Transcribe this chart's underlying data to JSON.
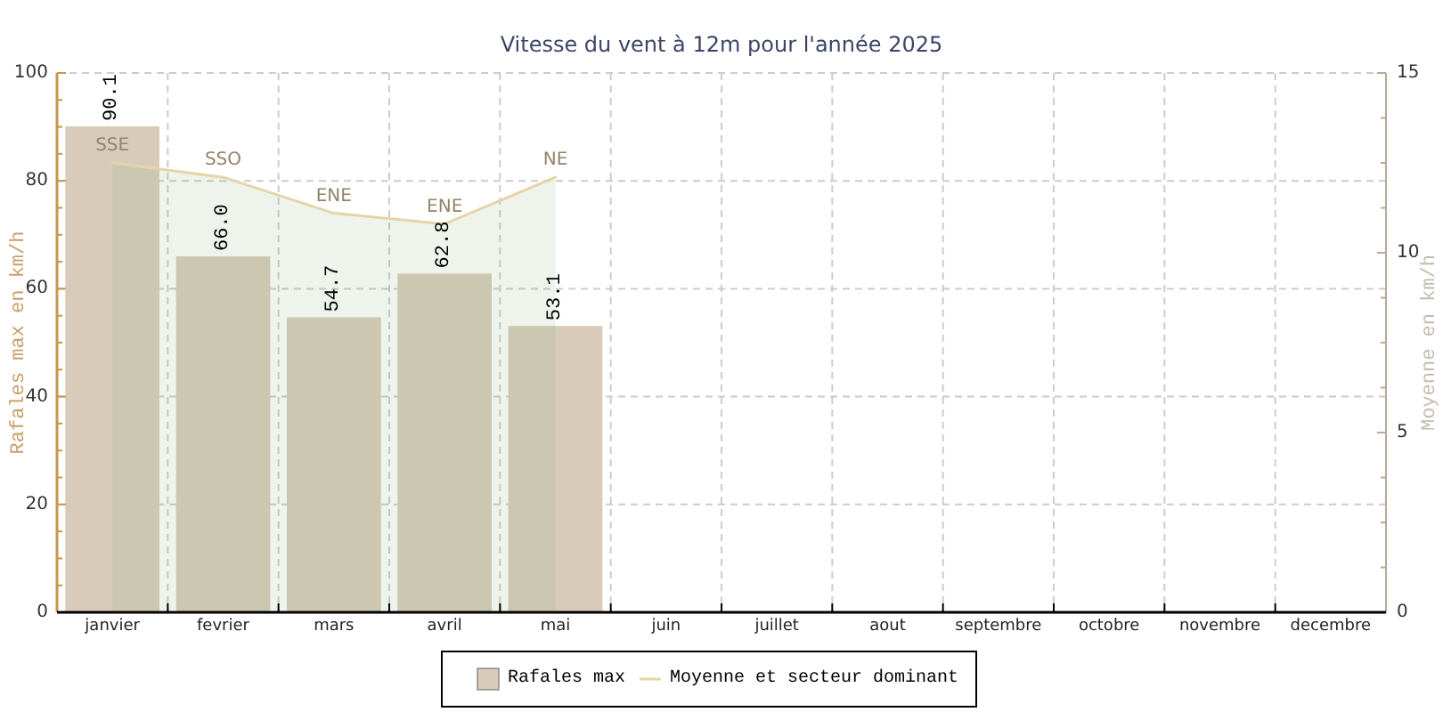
{
  "chart_data": {
    "type": "bar",
    "title": "Vitesse du vent à 12m pour l'année 2025",
    "ylabel": "Rafales max en km/h",
    "y2label": "Moyenne en km/h",
    "categories": [
      "janvier",
      "fevrier",
      "mars",
      "avril",
      "mai",
      "juin",
      "juillet",
      "aout",
      "septembre",
      "octobre",
      "novembre",
      "decembre"
    ],
    "series": [
      {
        "name": "Rafales max",
        "color": "#d8cbba",
        "values": [
          90.1,
          66.0,
          54.7,
          62.8,
          53.1,
          null,
          null,
          null,
          null,
          null,
          null,
          null
        ],
        "value_labels": [
          "90.1",
          "66.0",
          "54.7",
          "62.8",
          "53.1",
          null,
          null,
          null,
          null,
          null,
          null,
          null
        ]
      },
      {
        "name": "Moyenne et secteur dominant",
        "type": "area",
        "axis": "y2",
        "color": "#e6d4a8",
        "values": [
          12.5,
          12.1,
          11.1,
          10.8,
          12.1,
          null,
          null,
          null,
          null,
          null,
          null,
          null
        ],
        "value_labels": [
          "SSE",
          "SSO",
          "ENE",
          "ENE",
          "NE",
          null,
          null,
          null,
          null,
          null,
          null,
          null
        ]
      }
    ],
    "ylim": [
      0,
      100
    ],
    "yticks": [
      0,
      20,
      40,
      60,
      80,
      100
    ],
    "y2lim": [
      0,
      15
    ],
    "y2ticks": [
      0,
      5,
      10,
      15
    ],
    "grid": true,
    "legend": "bottom"
  }
}
